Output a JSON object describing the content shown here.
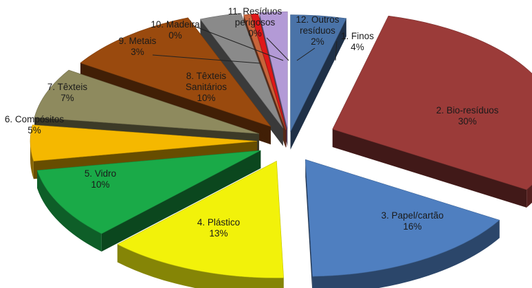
{
  "chart_data": {
    "type": "pie",
    "style": "3d-exploded",
    "title": "",
    "slices": [
      {
        "name": "1. Finos",
        "label_lines": [
          "1. Finos",
          "4%"
        ],
        "value": 4,
        "percent_label": "4%",
        "color": "#4a73a8",
        "label_inside": false
      },
      {
        "name": "2. Bio-resíduos",
        "label_lines": [
          "2. Bio-resíduos",
          "30%"
        ],
        "value": 30,
        "percent_label": "30%",
        "color": "#9b3b39",
        "label_inside": true
      },
      {
        "name": "3. Papel/cartão",
        "label_lines": [
          "3. Papel/cartão",
          "16%"
        ],
        "value": 16,
        "percent_label": "16%",
        "color": "#4f7fc0",
        "label_inside": true
      },
      {
        "name": "4. Plástico",
        "label_lines": [
          "4. Plástico",
          "13%"
        ],
        "value": 13,
        "percent_label": "13%",
        "color": "#f2f20a",
        "label_inside": true
      },
      {
        "name": "5. Vidro",
        "label_lines": [
          "5. Vidro",
          "10%"
        ],
        "value": 10,
        "percent_label": "10%",
        "color": "#1aaa48",
        "label_inside": true
      },
      {
        "name": "6. Compósitos",
        "label_lines": [
          "6. Compósitos",
          "5%"
        ],
        "value": 5,
        "percent_label": "5%",
        "color": "#f5b800",
        "label_inside": false
      },
      {
        "name": "7. Têxteis",
        "label_lines": [
          "7. Têxteis",
          "7%"
        ],
        "value": 7,
        "percent_label": "7%",
        "color": "#8e8a5e",
        "label_inside": false
      },
      {
        "name": "8. Têxteis Sanitários",
        "label_lines": [
          "8. Têxteis",
          "Sanitários",
          "10%"
        ],
        "value": 10,
        "percent_label": "10%",
        "color": "#9a4a0e",
        "label_inside": true
      },
      {
        "name": "9. Metais",
        "label_lines": [
          "9. Metais",
          "3%"
        ],
        "value": 3,
        "percent_label": "3%",
        "color": "#8a8a8a",
        "label_inside": false
      },
      {
        "name": "10. Madeira",
        "label_lines": [
          "10. Madeira",
          "0%"
        ],
        "value": 0.5,
        "percent_label": "0%",
        "color": "#c8643a",
        "label_inside": false
      },
      {
        "name": "11. Resíduos perigosos",
        "label_lines": [
          "11. Resíduos",
          "perigosos",
          "0%"
        ],
        "value": 0.5,
        "percent_label": "0%",
        "color": "#e01818",
        "label_inside": false
      },
      {
        "name": "12. Outros resíduos",
        "label_lines": [
          "12. Outros",
          "resíduos",
          "2%"
        ],
        "value": 2,
        "percent_label": "2%",
        "color": "#b39ad6",
        "label_inside": false
      }
    ],
    "legend": "none",
    "data_labels": "category name and percentage"
  }
}
